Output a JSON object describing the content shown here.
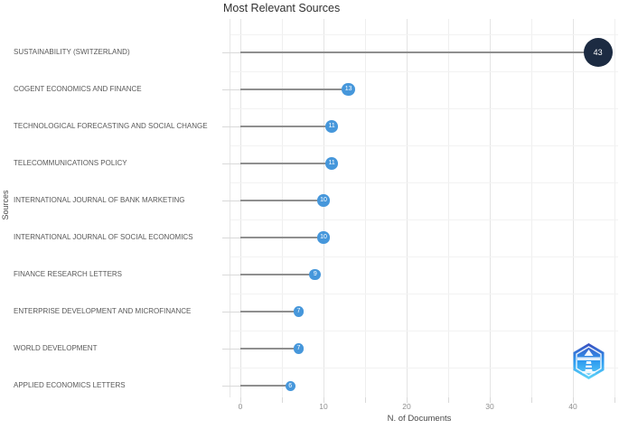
{
  "chart_data": {
    "type": "scatter",
    "variant": "horizontal-lollipop",
    "title": "Most Relevant Sources",
    "xlabel": "N. of Documents",
    "ylabel": "Sources",
    "categories": [
      "SUSTAINABILITY (SWITZERLAND)",
      "COGENT ECONOMICS AND FINANCE",
      "TECHNOLOGICAL FORECASTING AND SOCIAL CHANGE",
      "TELECOMMUNICATIONS POLICY",
      "INTERNATIONAL JOURNAL OF BANK MARKETING",
      "INTERNATIONAL JOURNAL OF SOCIAL ECONOMICS",
      "FINANCE RESEARCH LETTERS",
      "ENTERPRISE DEVELOPMENT AND MICROFINANCE",
      "WORLD DEVELOPMENT",
      "APPLIED ECONOMICS LETTERS"
    ],
    "values": [
      43,
      13,
      11,
      11,
      10,
      10,
      9,
      7,
      7,
      6
    ],
    "point_colors": [
      "#1c2b42",
      "#4697db",
      "#4697db",
      "#4697db",
      "#4697db",
      "#4697db",
      "#4697db",
      "#4697db",
      "#4697db",
      "#4697db"
    ],
    "xticks": [
      0,
      10,
      20,
      30,
      40
    ],
    "xlim": [
      0,
      45
    ],
    "grid": true,
    "legend": "none"
  },
  "colors": {
    "accent_blue": "#4697db",
    "accent_navy": "#1c2b42",
    "stem_gray": "#8f8f8f",
    "title_text": "#303030",
    "category_text": "#595959",
    "tick_text": "#8f8f8f"
  },
  "watermark": {
    "icon": "biblioshiny-hexagon-lighthouse-logo"
  }
}
